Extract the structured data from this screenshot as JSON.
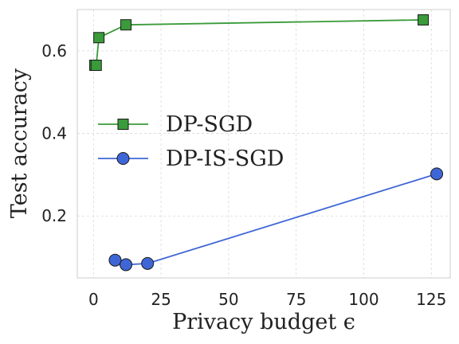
{
  "chart_data": {
    "type": "line",
    "xlabel": "Privacy budget ϵ",
    "ylabel": "Test accuracy",
    "xlim": [
      -6,
      132
    ],
    "ylim": [
      0.05,
      0.7
    ],
    "xticks": [
      0,
      25,
      50,
      75,
      100,
      125
    ],
    "yticks": [
      0.2,
      0.4,
      0.6
    ],
    "xtick_labels": [
      "0",
      "25",
      "50",
      "75",
      "100",
      "125"
    ],
    "ytick_labels": [
      "0.2",
      "0.4",
      "0.6"
    ],
    "grid": true,
    "legend_position": "center-left",
    "series": [
      {
        "name": "DP-SGD",
        "color": "#3a9b3a",
        "marker": "square",
        "x": [
          0.5,
          1,
          2,
          12,
          122
        ],
        "y": [
          0.565,
          0.565,
          0.632,
          0.663,
          0.675
        ]
      },
      {
        "name": "DP-IS-SGD",
        "color": "#3f66d6",
        "marker": "circle",
        "x": [
          8,
          12,
          20,
          127
        ],
        "y": [
          0.093,
          0.082,
          0.085,
          0.302
        ]
      }
    ]
  }
}
